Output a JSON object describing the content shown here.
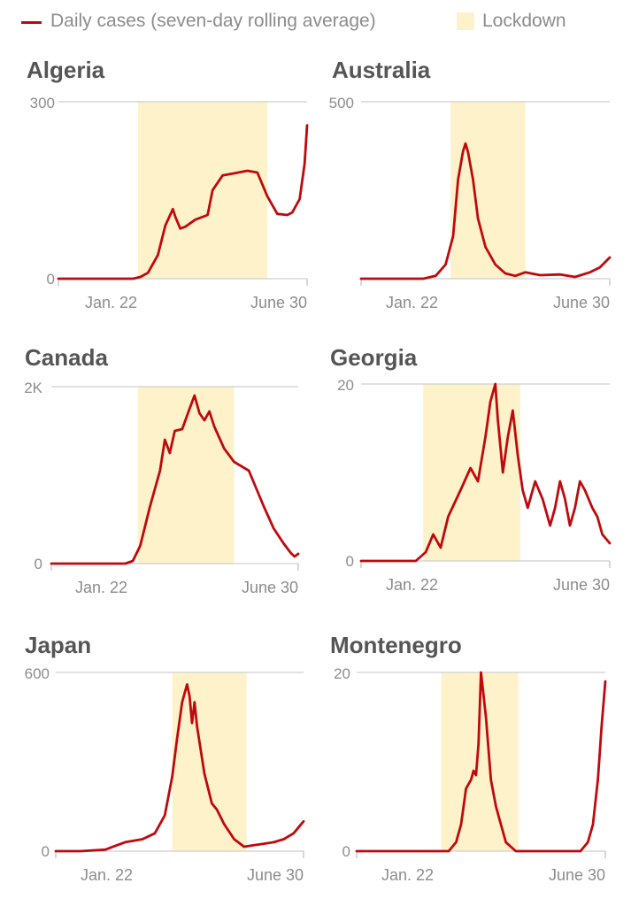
{
  "legend": {
    "line_label": "Daily cases (seven-day rolling average)",
    "band_label": "Lockdown",
    "line_color": "#c0090d",
    "band_color": "#fdf2c9"
  },
  "chart_data": [
    {
      "type": "line",
      "title": "Algeria",
      "ylim": [
        0,
        300
      ],
      "ytick_labels": [
        "300",
        "0"
      ],
      "xtick_labels": [
        "Jan. 22",
        "June 30"
      ],
      "x": [
        0,
        0.3,
        0.33,
        0.36,
        0.4,
        0.43,
        0.46,
        0.47,
        0.49,
        0.51,
        0.55,
        0.6,
        0.62,
        0.66,
        0.7,
        0.76,
        0.8,
        0.84,
        0.88,
        0.92,
        0.94,
        0.97,
        0.99,
        1
      ],
      "values": [
        0,
        0,
        3,
        10,
        40,
        90,
        118,
        105,
        85,
        88,
        100,
        108,
        150,
        175,
        178,
        183,
        180,
        140,
        110,
        108,
        112,
        135,
        195,
        260
      ],
      "lockdown": [
        0.32,
        0.84
      ]
    },
    {
      "type": "line",
      "title": "Australia",
      "ylim": [
        0,
        500
      ],
      "ytick_labels": [
        "500",
        ""
      ],
      "xtick_labels": [
        "Jan. 22",
        "June 30"
      ],
      "x": [
        0,
        0.25,
        0.3,
        0.34,
        0.37,
        0.39,
        0.41,
        0.42,
        0.43,
        0.45,
        0.47,
        0.5,
        0.54,
        0.58,
        0.62,
        0.66,
        0.72,
        0.8,
        0.86,
        0.92,
        0.96,
        1
      ],
      "values": [
        0,
        0,
        8,
        40,
        120,
        280,
        360,
        382,
        358,
        280,
        170,
        90,
        40,
        15,
        8,
        18,
        10,
        12,
        5,
        18,
        32,
        60
      ],
      "lockdown": [
        0.36,
        0.66
      ]
    },
    {
      "type": "line",
      "title": "Canada",
      "ylim": [
        0,
        2000
      ],
      "ytick_labels": [
        "2K",
        "0"
      ],
      "xtick_labels": [
        "Jan. 22",
        "June 30"
      ],
      "x": [
        0,
        0.3,
        0.33,
        0.36,
        0.4,
        0.44,
        0.46,
        0.48,
        0.5,
        0.53,
        0.56,
        0.58,
        0.6,
        0.62,
        0.64,
        0.66,
        0.7,
        0.74,
        0.8,
        0.86,
        0.9,
        0.94,
        0.97,
        0.985,
        1
      ],
      "values": [
        0,
        0,
        30,
        200,
        650,
        1050,
        1400,
        1250,
        1500,
        1520,
        1750,
        1900,
        1700,
        1620,
        1720,
        1550,
        1300,
        1150,
        1050,
        650,
        400,
        230,
        120,
        80,
        110
      ],
      "lockdown": [
        0.35,
        0.74
      ]
    },
    {
      "type": "line",
      "title": "Georgia",
      "ylim": [
        0,
        20
      ],
      "ytick_labels": [
        "20",
        "0"
      ],
      "xtick_labels": [
        "Jan. 22",
        "June 30"
      ],
      "x": [
        0,
        0.22,
        0.26,
        0.29,
        0.32,
        0.35,
        0.4,
        0.44,
        0.47,
        0.5,
        0.52,
        0.54,
        0.55,
        0.57,
        0.59,
        0.61,
        0.63,
        0.65,
        0.67,
        0.69,
        0.7,
        0.73,
        0.76,
        0.78,
        0.8,
        0.82,
        0.84,
        0.86,
        0.88,
        0.9,
        0.93,
        0.95,
        0.97,
        1
      ],
      "values": [
        0,
        0,
        1,
        3,
        1.5,
        5,
        8,
        10.5,
        9,
        14,
        18,
        20,
        16,
        10,
        14,
        17,
        12,
        8,
        6,
        8,
        9,
        7,
        4,
        6,
        9,
        7,
        4,
        6,
        9,
        8,
        6,
        5,
        3,
        2
      ],
      "lockdown": [
        0.25,
        0.64
      ]
    },
    {
      "type": "line",
      "title": "Japan",
      "ylim": [
        0,
        600
      ],
      "ytick_labels": [
        "600",
        "0"
      ],
      "xtick_labels": [
        "Jan. 22",
        "June 30"
      ],
      "x": [
        0,
        0.1,
        0.2,
        0.28,
        0.35,
        0.4,
        0.44,
        0.47,
        0.49,
        0.51,
        0.53,
        0.54,
        0.55,
        0.56,
        0.57,
        0.6,
        0.63,
        0.65,
        0.68,
        0.72,
        0.76,
        0.8,
        0.84,
        0.88,
        0.92,
        0.96,
        1
      ],
      "values": [
        0,
        0,
        5,
        30,
        40,
        60,
        120,
        250,
        380,
        500,
        560,
        520,
        430,
        500,
        420,
        260,
        160,
        140,
        90,
        40,
        15,
        20,
        25,
        30,
        40,
        60,
        100
      ],
      "lockdown": [
        0.47,
        0.77
      ]
    },
    {
      "type": "line",
      "title": "Montenegro",
      "ylim": [
        0,
        20
      ],
      "ytick_labels": [
        "20",
        "0"
      ],
      "xtick_labels": [
        "Jan. 22",
        "June 30"
      ],
      "x": [
        0,
        0.37,
        0.4,
        0.42,
        0.44,
        0.46,
        0.47,
        0.48,
        0.49,
        0.5,
        0.52,
        0.54,
        0.56,
        0.58,
        0.6,
        0.64,
        0.7,
        0.8,
        0.9,
        0.93,
        0.95,
        0.97,
        0.985,
        1
      ],
      "values": [
        0,
        0,
        1,
        3,
        7,
        8,
        9,
        8.5,
        12,
        20,
        15,
        8,
        5,
        3,
        1,
        0,
        0,
        0,
        0,
        1,
        3,
        8,
        14,
        19
      ],
      "lockdown": [
        0.34,
        0.65
      ]
    }
  ]
}
